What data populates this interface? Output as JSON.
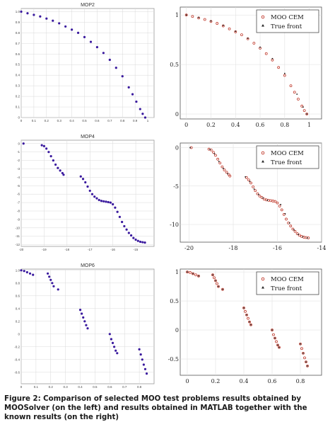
{
  "caption": "Figure 2: Comparison of selected MOO test problems results obtained by MOOSolver (on the left) and results obtained in MATLAB together with the known results (on the right)",
  "legend": {
    "moo_label": "MOO CEM",
    "true_label": "True front"
  },
  "colors": {
    "moosolver": "#3a1a9e",
    "moo_cem": "#c0392b",
    "true_front": "#222222",
    "grid_left": "#d9d9d9",
    "grid_right": "#dddddd"
  },
  "chart_data": [
    {
      "id": "mop2-moosolver",
      "type": "scatter",
      "title": "MOP2",
      "xlim": [
        0,
        1.05
      ],
      "ylim": [
        0,
        1.03
      ],
      "xticks": [
        "0",
        "0.1",
        "0.2",
        "0.3",
        "0.4",
        "0.5",
        "0.6",
        "0.7",
        "0.8",
        "0.9",
        "1"
      ],
      "xtick_values": [
        0,
        0.1,
        0.2,
        0.3,
        0.4,
        0.5,
        0.6,
        0.7,
        0.8,
        0.9,
        1.0
      ],
      "yticks": [
        "0",
        "0.1",
        "0.2",
        "0.3",
        "0.4",
        "0.5",
        "0.6",
        "0.7",
        "0.8",
        "0.9",
        "1.0"
      ],
      "ytick_values": [
        0,
        0.1,
        0.2,
        0.3,
        0.4,
        0.5,
        0.6,
        0.7,
        0.8,
        0.9,
        1.0
      ],
      "series": [
        {
          "x": [
            0.0,
            0.05,
            0.1,
            0.15,
            0.2,
            0.25,
            0.3,
            0.35,
            0.4,
            0.45,
            0.5,
            0.55,
            0.6,
            0.65,
            0.7,
            0.75,
            0.8,
            0.85,
            0.88,
            0.91,
            0.94,
            0.96,
            0.98
          ],
          "y": [
            1.0,
            0.985,
            0.97,
            0.955,
            0.935,
            0.915,
            0.89,
            0.86,
            0.83,
            0.8,
            0.76,
            0.715,
            0.665,
            0.61,
            0.545,
            0.47,
            0.39,
            0.285,
            0.22,
            0.15,
            0.08,
            0.035,
            0.0
          ]
        }
      ]
    },
    {
      "id": "mop2-matlab",
      "type": "scatter",
      "xlim": [
        -0.05,
        1.1
      ],
      "ylim": [
        -0.05,
        1.08
      ],
      "xticks": [
        "0",
        "0.2",
        "0.4",
        "0.6",
        "0.8",
        "1"
      ],
      "xtick_values": [
        0,
        0.2,
        0.4,
        0.6,
        0.8,
        1.0
      ],
      "yticks": [
        "0",
        "0.5",
        "1"
      ],
      "ytick_values": [
        0,
        0.5,
        1.0
      ],
      "series": [
        {
          "name": "MOO CEM",
          "x": [
            0.0,
            0.05,
            0.1,
            0.15,
            0.2,
            0.25,
            0.3,
            0.35,
            0.4,
            0.45,
            0.5,
            0.55,
            0.6,
            0.65,
            0.7,
            0.75,
            0.8,
            0.85,
            0.88,
            0.91,
            0.94,
            0.96,
            0.98
          ],
          "y": [
            1.0,
            0.985,
            0.97,
            0.955,
            0.935,
            0.915,
            0.89,
            0.86,
            0.83,
            0.8,
            0.76,
            0.715,
            0.665,
            0.61,
            0.545,
            0.47,
            0.39,
            0.285,
            0.22,
            0.15,
            0.08,
            0.035,
            0.0
          ]
        },
        {
          "name": "True front",
          "x": [
            0.0,
            0.1,
            0.2,
            0.3,
            0.4,
            0.5,
            0.6,
            0.7,
            0.8,
            0.9,
            0.95,
            0.98
          ],
          "y": [
            1.0,
            0.975,
            0.94,
            0.895,
            0.835,
            0.765,
            0.675,
            0.56,
            0.41,
            0.2,
            0.07,
            0.0
          ]
        }
      ]
    },
    {
      "id": "mop4-moosolver",
      "type": "scatter",
      "title": "MOP4",
      "xlim": [
        -20,
        -14.2
      ],
      "ylim": [
        -12.2,
        0.4
      ],
      "xticks": [
        "-20",
        "-19",
        "-18",
        "-17",
        "-16",
        "-15"
      ],
      "xtick_values": [
        -20,
        -19,
        -18,
        -17,
        -16,
        -15
      ],
      "yticks": [
        "0",
        "-1",
        "-2",
        "-3",
        "-4",
        "-5",
        "-6",
        "-7",
        "-8",
        "-9",
        "-10",
        "-11",
        "-12"
      ],
      "ytick_values": [
        0,
        -1,
        -2,
        -3,
        -4,
        -5,
        -6,
        -7,
        -8,
        -9,
        -10,
        -11,
        -12
      ],
      "series": [
        {
          "x": [
            -19.9,
            -19.1,
            -19.0,
            -18.9,
            -18.8,
            -18.7,
            -18.6,
            -18.5,
            -18.4,
            -18.3,
            -18.2,
            -18.15,
            -17.4,
            -17.3,
            -17.2,
            -17.1,
            -17.0,
            -16.9,
            -16.8,
            -16.7,
            -16.6,
            -16.5,
            -16.4,
            -16.3,
            -16.2,
            -16.1,
            -16.0,
            -15.9,
            -15.8,
            -15.7,
            -15.6,
            -15.5,
            -15.4,
            -15.3,
            -15.2,
            -15.1,
            -15.0,
            -14.9,
            -14.8,
            -14.7,
            -14.6
          ],
          "y": [
            0.0,
            -0.2,
            -0.3,
            -0.6,
            -1.0,
            -1.5,
            -2.0,
            -2.5,
            -2.9,
            -3.2,
            -3.5,
            -3.7,
            -3.9,
            -4.2,
            -4.6,
            -5.1,
            -5.6,
            -6.0,
            -6.3,
            -6.5,
            -6.7,
            -6.8,
            -6.85,
            -6.9,
            -6.95,
            -7.0,
            -7.2,
            -7.6,
            -8.1,
            -8.7,
            -9.3,
            -9.8,
            -10.2,
            -10.6,
            -10.9,
            -11.2,
            -11.4,
            -11.55,
            -11.65,
            -11.7,
            -11.75
          ]
        }
      ]
    },
    {
      "id": "mop4-matlab",
      "type": "scatter",
      "xlim": [
        -20.4,
        -14
      ],
      "ylim": [
        -12.3,
        0.6
      ],
      "xticks": [
        "-20",
        "-18",
        "-16",
        "-14"
      ],
      "xtick_values": [
        -20,
        -18,
        -16,
        -14
      ],
      "yticks": [
        "0",
        "-5",
        "-10"
      ],
      "ytick_values": [
        0,
        -5,
        -10
      ],
      "series": [
        {
          "name": "MOO CEM",
          "x": [
            -19.9,
            -19.1,
            -19.0,
            -18.9,
            -18.8,
            -18.7,
            -18.6,
            -18.5,
            -18.4,
            -18.3,
            -18.2,
            -18.15,
            -17.4,
            -17.3,
            -17.2,
            -17.1,
            -17.0,
            -16.9,
            -16.8,
            -16.7,
            -16.6,
            -16.5,
            -16.4,
            -16.3,
            -16.2,
            -16.1,
            -16.0,
            -15.9,
            -15.8,
            -15.7,
            -15.6,
            -15.5,
            -15.4,
            -15.3,
            -15.2,
            -15.1,
            -15.0,
            -14.9,
            -14.8,
            -14.7,
            -14.6
          ],
          "y": [
            0.0,
            -0.2,
            -0.3,
            -0.6,
            -1.0,
            -1.5,
            -2.0,
            -2.5,
            -2.9,
            -3.2,
            -3.5,
            -3.7,
            -3.9,
            -4.2,
            -4.6,
            -5.1,
            -5.6,
            -6.0,
            -6.3,
            -6.5,
            -6.7,
            -6.8,
            -6.85,
            -6.9,
            -6.95,
            -7.0,
            -7.2,
            -7.6,
            -8.1,
            -8.7,
            -9.3,
            -9.8,
            -10.2,
            -10.6,
            -10.9,
            -11.2,
            -11.4,
            -11.55,
            -11.65,
            -11.7,
            -11.75
          ]
        },
        {
          "name": "True front",
          "x": [
            -19.95,
            -19.05,
            -18.85,
            -18.65,
            -18.45,
            -18.25,
            -17.45,
            -17.25,
            -17.05,
            -16.85,
            -16.65,
            -16.45,
            -15.85,
            -15.65,
            -15.45,
            -15.25,
            -15.05,
            -14.85,
            -14.65
          ],
          "y": [
            0.0,
            -0.25,
            -0.8,
            -1.8,
            -2.7,
            -3.4,
            -3.8,
            -4.4,
            -5.4,
            -6.1,
            -6.55,
            -6.85,
            -7.4,
            -8.6,
            -9.8,
            -10.7,
            -11.3,
            -11.6,
            -11.75
          ]
        }
      ]
    },
    {
      "id": "mop6-moosolver",
      "type": "scatter",
      "title": "MOP6",
      "xlim": [
        0,
        0.9
      ],
      "ylim": [
        -0.78,
        1.02
      ],
      "xticks": [
        "0",
        "0.1",
        "0.2",
        "0.3",
        "0.4",
        "0.5",
        "0.6",
        "0.7",
        "0.8"
      ],
      "xtick_values": [
        0,
        0.1,
        0.2,
        0.3,
        0.4,
        0.5,
        0.6,
        0.7,
        0.8
      ],
      "yticks": [
        "1.0",
        "0.8",
        "0.6",
        "0.4",
        "0.2",
        "0",
        "-0.2",
        "-0.4",
        "-0.6"
      ],
      "ytick_values": [
        1.0,
        0.8,
        0.6,
        0.4,
        0.2,
        0,
        -0.2,
        -0.4,
        -0.6
      ],
      "series": [
        {
          "x": [
            0.0,
            0.02,
            0.04,
            0.06,
            0.08,
            0.18,
            0.19,
            0.2,
            0.21,
            0.22,
            0.25,
            0.4,
            0.41,
            0.42,
            0.43,
            0.44,
            0.45,
            0.6,
            0.61,
            0.62,
            0.63,
            0.64,
            0.65,
            0.8,
            0.81,
            0.82,
            0.83,
            0.84,
            0.85
          ],
          "y": [
            1.0,
            0.99,
            0.97,
            0.95,
            0.93,
            0.95,
            0.9,
            0.85,
            0.8,
            0.75,
            0.7,
            0.38,
            0.32,
            0.26,
            0.2,
            0.14,
            0.09,
            0.0,
            -0.08,
            -0.14,
            -0.2,
            -0.26,
            -0.3,
            -0.24,
            -0.32,
            -0.4,
            -0.48,
            -0.55,
            -0.62
          ]
        }
      ]
    },
    {
      "id": "mop6-matlab",
      "type": "scatter",
      "xlim": [
        -0.05,
        0.95
      ],
      "ylim": [
        -0.78,
        1.05
      ],
      "xticks": [
        "0",
        "0.2",
        "0.4",
        "0.6",
        "0.8"
      ],
      "xtick_values": [
        0,
        0.2,
        0.4,
        0.6,
        0.8
      ],
      "yticks": [
        "1",
        "0.5",
        "0",
        "-0.5"
      ],
      "ytick_values": [
        1.0,
        0.5,
        0,
        -0.5
      ],
      "series": [
        {
          "name": "MOO CEM",
          "x": [
            0.0,
            0.02,
            0.04,
            0.06,
            0.08,
            0.18,
            0.19,
            0.2,
            0.21,
            0.22,
            0.25,
            0.4,
            0.41,
            0.42,
            0.43,
            0.44,
            0.45,
            0.6,
            0.61,
            0.62,
            0.63,
            0.64,
            0.65,
            0.8,
            0.81,
            0.82,
            0.83,
            0.84,
            0.85
          ],
          "y": [
            1.0,
            0.99,
            0.97,
            0.95,
            0.93,
            0.95,
            0.9,
            0.85,
            0.8,
            0.75,
            0.7,
            0.38,
            0.32,
            0.26,
            0.2,
            0.14,
            0.09,
            0.0,
            -0.08,
            -0.14,
            -0.2,
            -0.26,
            -0.3,
            -0.24,
            -0.32,
            -0.4,
            -0.48,
            -0.55,
            -0.62
          ]
        },
        {
          "name": "True front",
          "x": [
            0.0,
            0.04,
            0.08,
            0.18,
            0.2,
            0.22,
            0.25,
            0.4,
            0.42,
            0.44,
            0.45,
            0.6,
            0.62,
            0.64,
            0.65,
            0.8,
            0.82,
            0.84,
            0.85
          ],
          "y": [
            1.0,
            0.97,
            0.93,
            0.95,
            0.85,
            0.75,
            0.7,
            0.38,
            0.26,
            0.14,
            0.09,
            0.0,
            -0.14,
            -0.26,
            -0.3,
            -0.24,
            -0.4,
            -0.55,
            -0.62
          ]
        }
      ]
    }
  ]
}
